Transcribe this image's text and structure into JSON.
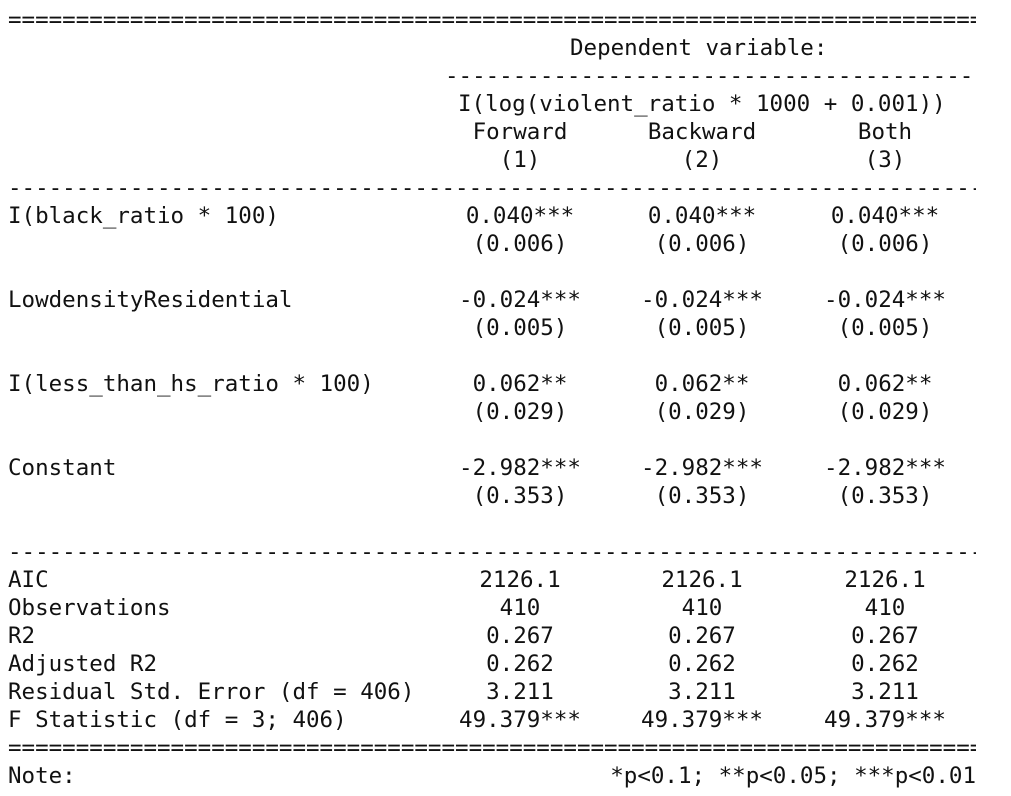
{
  "rules": {
    "double": "==================================================================================================",
    "single": "--------------------------------------------------------------------------------------------------",
    "dep_single": "--------------------------------------------------"
  },
  "header": {
    "dependent_variable": "Dependent variable:",
    "formula": "I(log(violent_ratio * 1000 + 0.001))",
    "models": [
      {
        "name": "Forward",
        "number": "(1)"
      },
      {
        "name": "Backward",
        "number": "(2)"
      },
      {
        "name": "Both",
        "number": "(3)"
      }
    ]
  },
  "coefficients": [
    {
      "label": "I(black_ratio * 100)",
      "estimates": [
        "0.040***",
        "0.040***",
        "0.040***"
      ],
      "std_errors": [
        "(0.006)",
        "(0.006)",
        "(0.006)"
      ]
    },
    {
      "label": "LowdensityResidential",
      "estimates": [
        "-0.024***",
        "-0.024***",
        "-0.024***"
      ],
      "std_errors": [
        "(0.005)",
        "(0.005)",
        "(0.005)"
      ]
    },
    {
      "label": "I(less_than_hs_ratio * 100)",
      "estimates": [
        "0.062**",
        "0.062**",
        "0.062**"
      ],
      "std_errors": [
        "(0.029)",
        "(0.029)",
        "(0.029)"
      ]
    },
    {
      "label": "Constant",
      "estimates": [
        "-2.982***",
        "-2.982***",
        "-2.982***"
      ],
      "std_errors": [
        "(0.353)",
        "(0.353)",
        "(0.353)"
      ]
    }
  ],
  "statistics": [
    {
      "label": "AIC",
      "values": [
        "2126.1",
        "2126.1",
        "2126.1"
      ]
    },
    {
      "label": "Observations",
      "values": [
        "410",
        "410",
        "410"
      ]
    },
    {
      "label": "R2",
      "values": [
        "0.267",
        "0.267",
        "0.267"
      ]
    },
    {
      "label": "Adjusted R2",
      "values": [
        "0.262",
        "0.262",
        "0.262"
      ]
    },
    {
      "label": "Residual Std. Error (df = 406)",
      "values": [
        "3.211",
        "3.211",
        "3.211"
      ]
    },
    {
      "label": "F Statistic (df = 3; 406)",
      "values": [
        "49.379***",
        "49.379***",
        "49.379***"
      ]
    }
  ],
  "footer": {
    "note_label": "Note:",
    "note_text": "*p<0.1; **p<0.05; ***p<0.01"
  }
}
